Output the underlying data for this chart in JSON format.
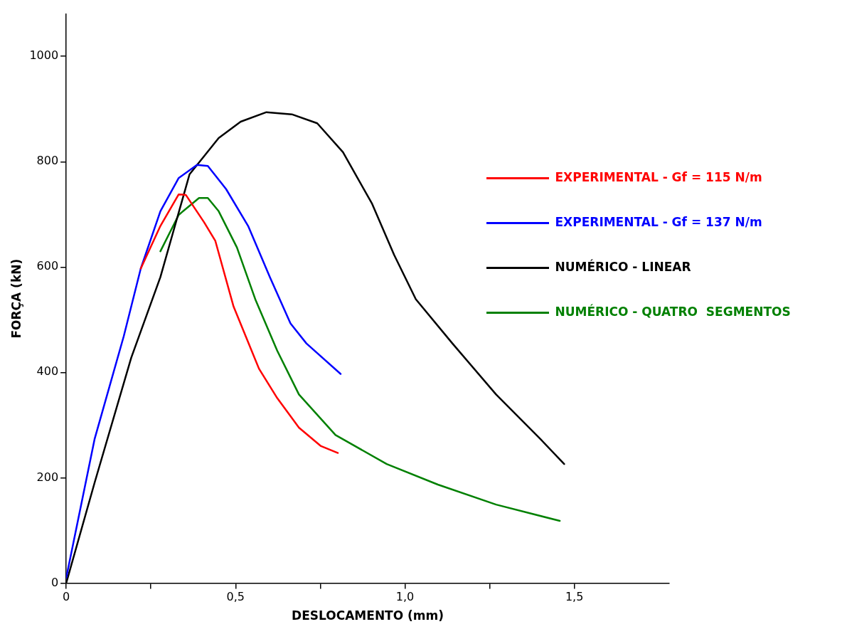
{
  "chart_data": {
    "type": "line",
    "xlabel": "DESLOCAMENTO (mm)",
    "ylabel": "FORÇA (kN)",
    "xlim": [
      0,
      1.78
    ],
    "ylim": [
      0,
      1080
    ],
    "xticks": [
      0,
      {
        "value": 0.25,
        "label": null
      },
      {
        "value": 0.5,
        "label": "0,5"
      },
      {
        "value": 0.75,
        "label": null
      },
      {
        "value": 1,
        "label": "1,0"
      },
      {
        "value": 1.25,
        "label": null
      },
      {
        "value": 1.5,
        "label": "1,5"
      }
    ],
    "yticks": [
      0,
      200,
      400,
      600,
      800,
      1000
    ],
    "grid": false,
    "legend": "right",
    "marker": "none",
    "line_style": "solid",
    "series": [
      {
        "name": "EXPERIMENTAL - Gf = 115 N/m",
        "color": "#ff0000",
        "x": [
          0.22,
          0.278,
          0.332,
          0.353,
          0.407,
          0.44,
          0.494,
          0.569,
          0.623,
          0.687,
          0.752,
          0.802
        ],
        "values": [
          597,
          678,
          738,
          737,
          685,
          650,
          525,
          407,
          351,
          295,
          260,
          247
        ]
      },
      {
        "name": "EXPERIMENTAL - Gf = 137 N/m",
        "color": "#0000ff",
        "x": [
          0,
          0.084,
          0.17,
          0.22,
          0.278,
          0.332,
          0.386,
          0.418,
          0.472,
          0.537,
          0.601,
          0.662,
          0.709,
          0.81
        ],
        "values": [
          10,
          274,
          469,
          597,
          706,
          769,
          794,
          792,
          748,
          678,
          581,
          493,
          455,
          397
        ]
      },
      {
        "name": "NUMÉRICO - LINEAR",
        "color": "#000000",
        "x": [
          0,
          0.084,
          0.192,
          0.278,
          0.364,
          0.45,
          0.515,
          0.591,
          0.666,
          0.741,
          0.817,
          0.903,
          0.968,
          1.032,
          1.14,
          1.269,
          1.399,
          1.47
        ],
        "values": [
          0,
          191,
          428,
          581,
          776,
          845,
          876,
          894,
          890,
          873,
          818,
          720,
          623,
          539,
          455,
          358,
          274,
          226
        ]
      },
      {
        "name": "NUMÉRICO - QUATRO  SEGMENTOS",
        "color": "#008000",
        "x": [
          0.278,
          0.332,
          0.392,
          0.418,
          0.45,
          0.504,
          0.558,
          0.623,
          0.687,
          0.795,
          0.946,
          1.097,
          1.269,
          1.457
        ],
        "values": [
          630,
          699,
          731,
          731,
          706,
          637,
          539,
          441,
          358,
          281,
          226,
          187,
          149,
          118
        ]
      }
    ]
  }
}
